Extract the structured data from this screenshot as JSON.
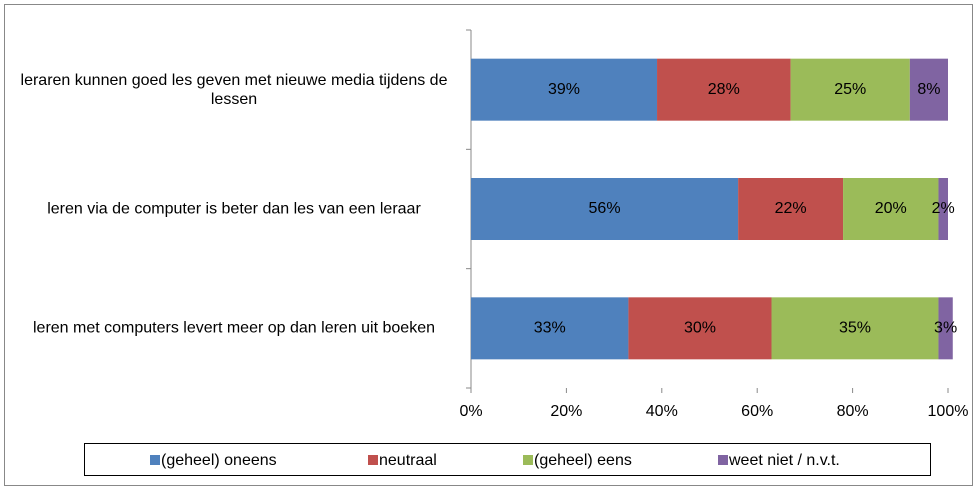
{
  "chart_data": {
    "type": "stacked_barh",
    "categories": [
      "leraren kunnen goed les geven met nieuwe media tijdens de lessen",
      "leren via de computer is beter dan les van een leraar",
      "leren met computers levert meer op dan leren uit boeken"
    ],
    "series": [
      {
        "name": "(geheel) oneens",
        "color": "#4f81bd",
        "values": [
          39,
          56,
          33
        ],
        "value_labels": [
          "39%",
          "56%",
          "33%"
        ]
      },
      {
        "name": "neutraal",
        "color": "#c0504d",
        "values": [
          28,
          22,
          30
        ],
        "value_labels": [
          "28%",
          "22%",
          "30%"
        ]
      },
      {
        "name": "(geheel) eens",
        "color": "#9bbb59",
        "values": [
          25,
          20,
          35
        ],
        "value_labels": [
          "25%",
          "20%",
          "35%"
        ]
      },
      {
        "name": "weet niet / n.v.t.",
        "color": "#8064a2",
        "values": [
          8,
          2,
          3
        ],
        "value_labels": [
          "8%",
          "2%",
          "3%"
        ]
      }
    ],
    "xlim": [
      0,
      100
    ],
    "xticks": [
      {
        "value": 0,
        "label": "0%"
      },
      {
        "value": 20,
        "label": "20%"
      },
      {
        "value": 40,
        "label": "40%"
      },
      {
        "value": 60,
        "label": "60%"
      },
      {
        "value": 80,
        "label": "80%"
      },
      {
        "value": 100,
        "label": "100%"
      }
    ],
    "legend": "bottom"
  }
}
